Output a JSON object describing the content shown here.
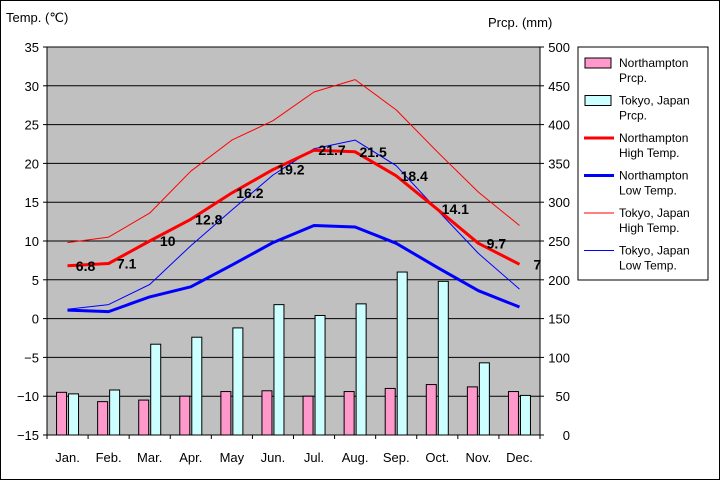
{
  "chart_data": {
    "type": "bar+line",
    "title": "",
    "left_axis": {
      "label": "Temp. (℃)",
      "range": [
        -15,
        35
      ],
      "step": 5
    },
    "right_axis": {
      "label": "Prcp. (mm)",
      "range": [
        0,
        500
      ],
      "step": 50
    },
    "categories": [
      "Jan.",
      "Feb.",
      "Mar.",
      "Apr.",
      "May",
      "Jun.",
      "Jul.",
      "Aug.",
      "Sep.",
      "Oct.",
      "Nov.",
      "Dec."
    ],
    "bar_series": [
      {
        "id": "northampton-prcp",
        "name_lines": [
          "Northampton",
          "Prcp."
        ],
        "color": "#ff99cc",
        "axis": "right",
        "values": [
          55,
          43,
          45,
          50,
          56,
          57,
          50,
          56,
          60,
          65,
          62,
          56
        ]
      },
      {
        "id": "tokyo-prcp",
        "name_lines": [
          "Tokyo, Japan",
          "Prcp."
        ],
        "color": "#ccffff",
        "axis": "right",
        "values": [
          53,
          58,
          117,
          126,
          138,
          168,
          154,
          169,
          210,
          198,
          93,
          51
        ]
      }
    ],
    "line_series": [
      {
        "id": "northampton-high",
        "name_lines": [
          "Northampton",
          "High Temp."
        ],
        "color": "#ff0000",
        "width": 3,
        "axis": "left",
        "values": [
          6.8,
          7.1,
          10,
          12.8,
          16.2,
          19.2,
          21.7,
          21.5,
          18.4,
          14.1,
          9.7,
          7
        ],
        "labels": [
          "6.8",
          "7.1",
          "10",
          "12.8",
          "16.2",
          "19.2",
          "21.7",
          "21.5",
          "18.4",
          "14.1",
          "9.7",
          "7"
        ]
      },
      {
        "id": "northampton-low",
        "name_lines": [
          "Northampton",
          "Low Temp."
        ],
        "color": "#0000ff",
        "width": 3,
        "axis": "left",
        "values": [
          1.1,
          0.9,
          2.8,
          4.1,
          6.9,
          9.8,
          12.0,
          11.8,
          9.7,
          6.6,
          3.6,
          1.5
        ]
      },
      {
        "id": "tokyo-high",
        "name_lines": [
          "Tokyo, Japan",
          "High Temp."
        ],
        "color": "#ff0000",
        "width": 1,
        "axis": "left",
        "values": [
          9.8,
          10.5,
          13.6,
          19.0,
          23.0,
          25.5,
          29.2,
          30.8,
          26.9,
          21.5,
          16.3,
          12.0
        ]
      },
      {
        "id": "tokyo-low",
        "name_lines": [
          "Tokyo, Japan",
          "Low Temp."
        ],
        "color": "#0000ff",
        "width": 1,
        "axis": "left",
        "values": [
          1.2,
          1.8,
          4.4,
          9.4,
          14.0,
          18.5,
          21.9,
          23.0,
          19.7,
          14.0,
          8.4,
          3.8
        ]
      }
    ],
    "grid": true,
    "legend_position": "right"
  }
}
